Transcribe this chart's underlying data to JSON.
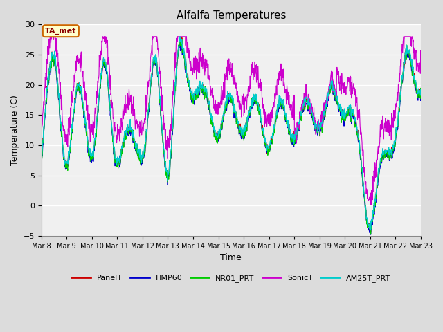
{
  "title": "Alfalfa Temperatures",
  "xlabel": "Time",
  "ylabel": "Temperature (C)",
  "ylim": [
    -5,
    30
  ],
  "annotation_text": "TA_met",
  "annotation_bg": "#FFFFCC",
  "annotation_border": "#CC0000",
  "series_colors": {
    "PanelT": "#CC0000",
    "HMP60": "#0000CC",
    "NR01_PRT": "#00CC00",
    "SonicT": "#CC00CC",
    "AM25T_PRT": "#00CCCC"
  },
  "legend_labels": [
    "PanelT",
    "HMP60",
    "NR01_PRT",
    "SonicT",
    "AM25T_PRT"
  ],
  "yticks": [
    -5,
    0,
    5,
    10,
    15,
    20,
    25,
    30
  ],
  "bg_color": "#DCDCDC",
  "plot_bg": "#F0F0F0",
  "grid_color": "#FFFFFF",
  "tick_days": [
    8,
    9,
    10,
    11,
    12,
    13,
    14,
    15,
    16,
    17,
    18,
    19,
    20,
    21,
    22,
    23
  ],
  "figwidth": 6.4,
  "figheight": 4.8,
  "dpi": 100
}
